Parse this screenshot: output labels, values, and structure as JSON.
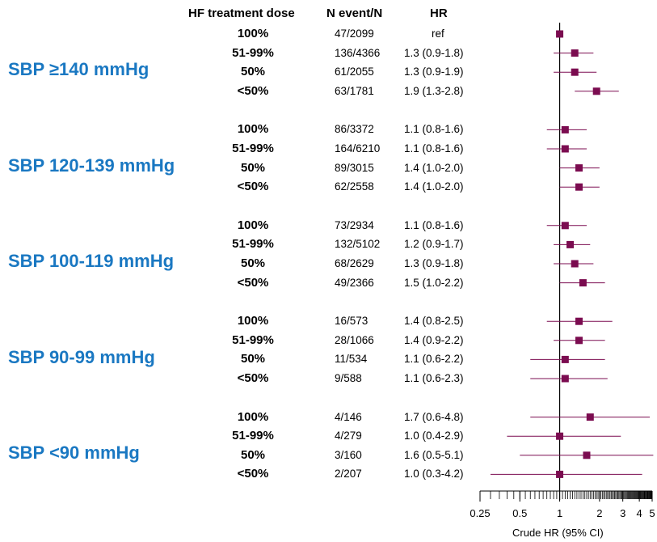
{
  "headers": {
    "dose": "HF treatment dose",
    "nevent": "N event/N",
    "hr": "HR"
  },
  "colors": {
    "group_label": "#1a78c2",
    "marker": "#7b0c50",
    "axis": "#000000"
  },
  "chart_data": {
    "type": "forest",
    "xlabel": "Crude HR (95% CI)",
    "xscale": "log",
    "xlim": [
      0.25,
      5
    ],
    "xticks": [
      0.25,
      0.5,
      1,
      2,
      3,
      4,
      5
    ],
    "xtick_labels": [
      "0.25",
      "0.5",
      "1",
      "2",
      "3",
      "4",
      "5"
    ],
    "reference_line": 1,
    "groups": [
      {
        "label": "SBP ≥140 mmHg",
        "rows": [
          {
            "dose": "100%",
            "n": "47/2099",
            "hr_text": "ref",
            "hr": 1.0,
            "lo": null,
            "hi": null
          },
          {
            "dose": "51-99%",
            "n": "136/4366",
            "hr_text": "1.3 (0.9-1.8)",
            "hr": 1.3,
            "lo": 0.9,
            "hi": 1.8
          },
          {
            "dose": "50%",
            "n": "61/2055",
            "hr_text": "1.3 (0.9-1.9)",
            "hr": 1.3,
            "lo": 0.9,
            "hi": 1.9
          },
          {
            "dose": "<50%",
            "n": "63/1781",
            "hr_text": "1.9 (1.3-2.8)",
            "hr": 1.9,
            "lo": 1.3,
            "hi": 2.8
          }
        ]
      },
      {
        "label": "SBP 120-139 mmHg",
        "rows": [
          {
            "dose": "100%",
            "n": "86/3372",
            "hr_text": "1.1 (0.8-1.6)",
            "hr": 1.1,
            "lo": 0.8,
            "hi": 1.6
          },
          {
            "dose": "51-99%",
            "n": "164/6210",
            "hr_text": "1.1 (0.8-1.6)",
            "hr": 1.1,
            "lo": 0.8,
            "hi": 1.6
          },
          {
            "dose": "50%",
            "n": "89/3015",
            "hr_text": "1.4 (1.0-2.0)",
            "hr": 1.4,
            "lo": 1.0,
            "hi": 2.0
          },
          {
            "dose": "<50%",
            "n": "62/2558",
            "hr_text": "1.4 (1.0-2.0)",
            "hr": 1.4,
            "lo": 1.0,
            "hi": 2.0
          }
        ]
      },
      {
        "label": "SBP 100-119 mmHg",
        "rows": [
          {
            "dose": "100%",
            "n": "73/2934",
            "hr_text": "1.1 (0.8-1.6)",
            "hr": 1.1,
            "lo": 0.8,
            "hi": 1.6
          },
          {
            "dose": "51-99%",
            "n": "132/5102",
            "hr_text": "1.2 (0.9-1.7)",
            "hr": 1.2,
            "lo": 0.9,
            "hi": 1.7
          },
          {
            "dose": "50%",
            "n": "68/2629",
            "hr_text": "1.3 (0.9-1.8)",
            "hr": 1.3,
            "lo": 0.9,
            "hi": 1.8
          },
          {
            "dose": "<50%",
            "n": "49/2366",
            "hr_text": "1.5 (1.0-2.2)",
            "hr": 1.5,
            "lo": 1.0,
            "hi": 2.2
          }
        ]
      },
      {
        "label": "SBP 90-99 mmHg",
        "rows": [
          {
            "dose": "100%",
            "n": "16/573",
            "hr_text": "1.4 (0.8-2.5)",
            "hr": 1.4,
            "lo": 0.8,
            "hi": 2.5
          },
          {
            "dose": "51-99%",
            "n": "28/1066",
            "hr_text": "1.4 (0.9-2.2)",
            "hr": 1.4,
            "lo": 0.9,
            "hi": 2.2
          },
          {
            "dose": "50%",
            "n": "11/534",
            "hr_text": "1.1 (0.6-2.2)",
            "hr": 1.1,
            "lo": 0.6,
            "hi": 2.2
          },
          {
            "dose": "<50%",
            "n": "9/588",
            "hr_text": "1.1 (0.6-2.3)",
            "hr": 1.1,
            "lo": 0.6,
            "hi": 2.3
          }
        ]
      },
      {
        "label": "SBP <90 mmHg",
        "rows": [
          {
            "dose": "100%",
            "n": "4/146",
            "hr_text": "1.7 (0.6-4.8)",
            "hr": 1.7,
            "lo": 0.6,
            "hi": 4.8
          },
          {
            "dose": "51-99%",
            "n": "4/279",
            "hr_text": "1.0 (0.4-2.9)",
            "hr": 1.0,
            "lo": 0.4,
            "hi": 2.9
          },
          {
            "dose": "50%",
            "n": "3/160",
            "hr_text": "1.6 (0.5-5.1)",
            "hr": 1.6,
            "lo": 0.5,
            "hi": 5.1
          },
          {
            "dose": "<50%",
            "n": "2/207",
            "hr_text": "1.0 (0.3-4.2)",
            "hr": 1.0,
            "lo": 0.3,
            "hi": 4.2
          }
        ]
      }
    ]
  }
}
